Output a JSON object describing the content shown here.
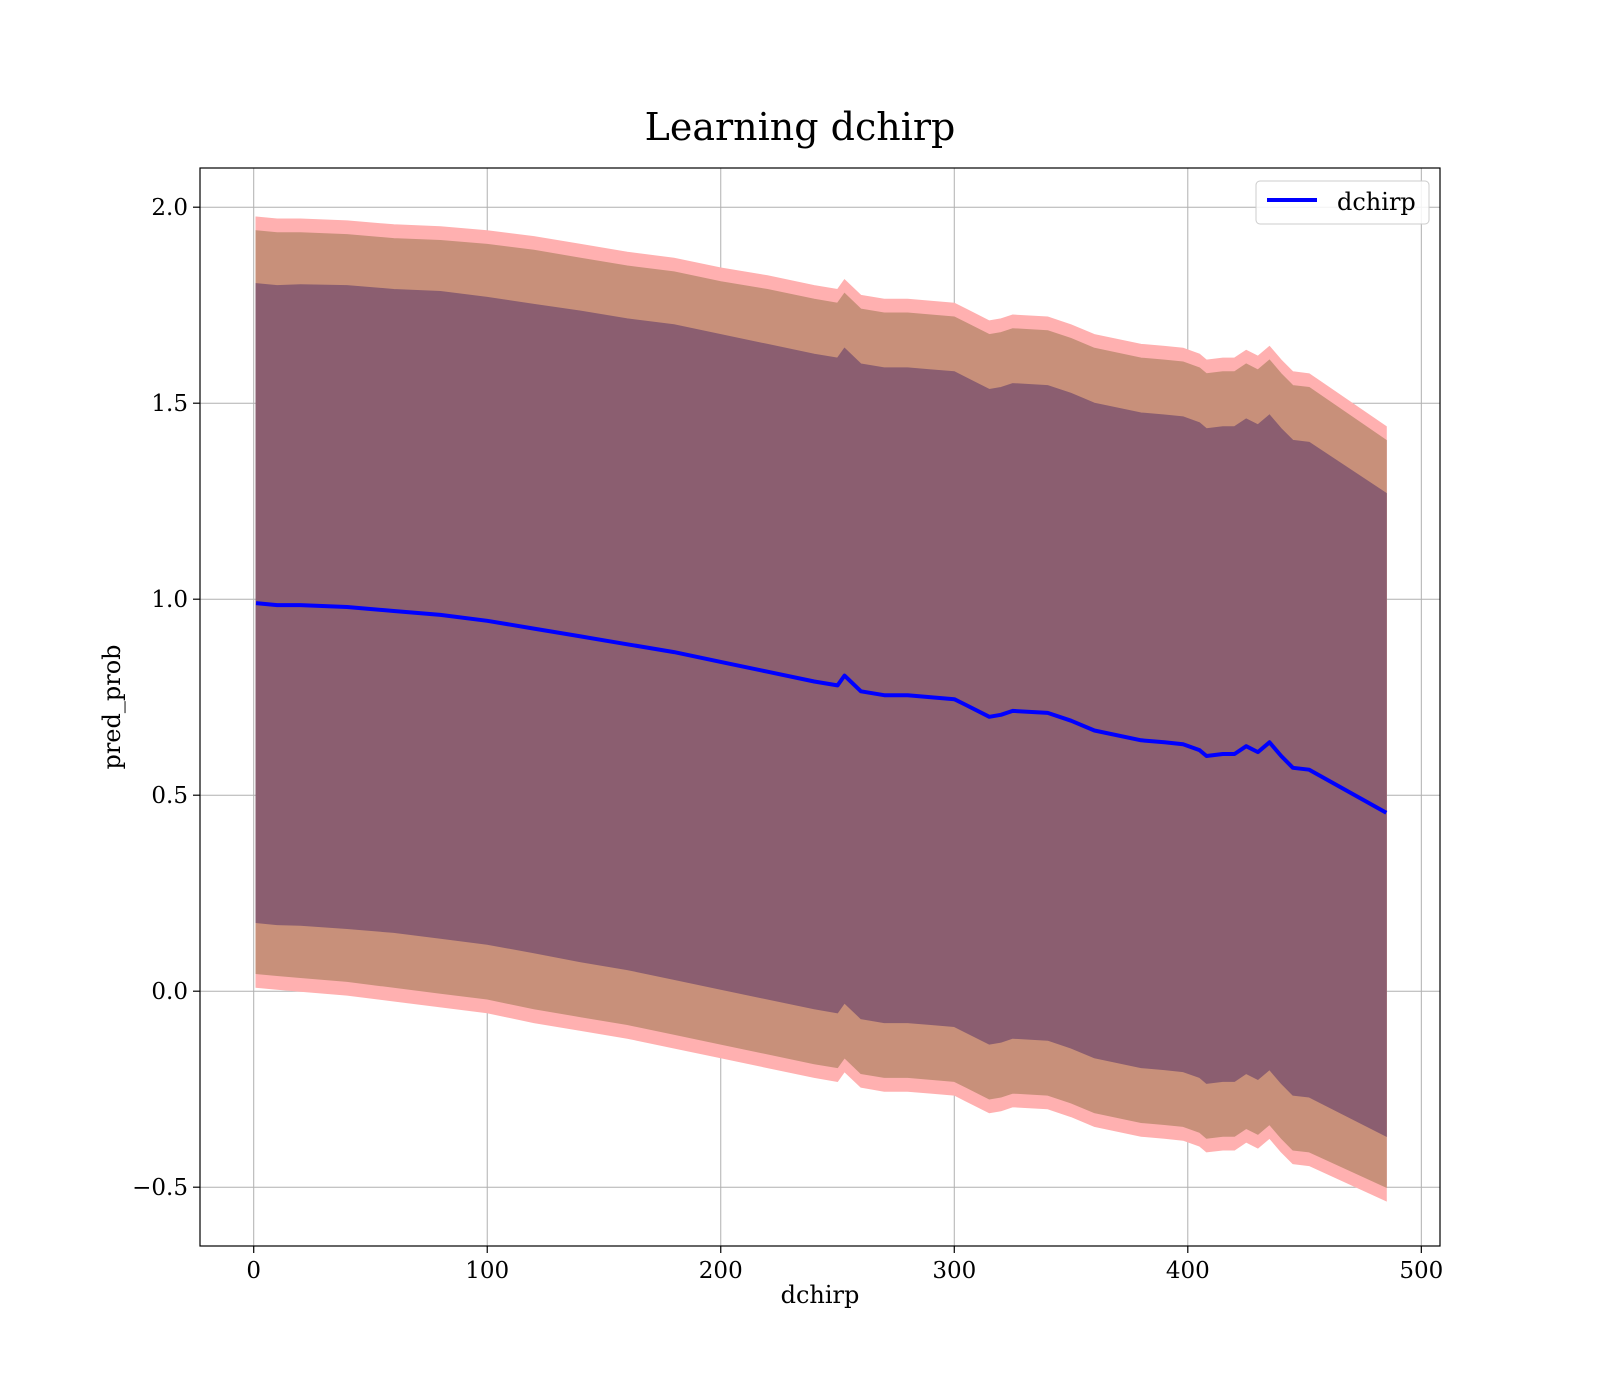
{
  "chart_data": {
    "type": "area",
    "title": "Learning dchirp",
    "xlabel": "dchirp",
    "ylabel": "pred_prob",
    "xlim": [
      -23,
      508
    ],
    "ylim": [
      -0.65,
      2.1
    ],
    "xticks": [
      0,
      100,
      200,
      300,
      400,
      500
    ],
    "yticks": [
      -0.5,
      0.0,
      0.5,
      1.0,
      1.5,
      2.0
    ],
    "xtick_labels": [
      "0",
      "100",
      "200",
      "300",
      "400",
      "500"
    ],
    "ytick_labels": [
      "−0.5",
      "0.0",
      "0.5",
      "1.0",
      "1.5",
      "2.0"
    ],
    "grid": true,
    "legend_position": "top-right",
    "x": [
      1,
      10,
      20,
      40,
      60,
      80,
      100,
      120,
      140,
      160,
      180,
      200,
      220,
      240,
      250,
      253,
      260,
      270,
      280,
      290,
      300,
      305,
      315,
      320,
      325,
      340,
      350,
      360,
      380,
      390,
      398,
      405,
      408,
      415,
      420,
      425,
      430,
      435,
      440,
      445,
      452,
      485
    ],
    "series": [
      {
        "name": "dchirp",
        "color": "#0000ff",
        "values": [
          0.99,
          0.985,
          0.985,
          0.98,
          0.97,
          0.96,
          0.945,
          0.925,
          0.905,
          0.885,
          0.865,
          0.84,
          0.815,
          0.79,
          0.78,
          0.805,
          0.765,
          0.755,
          0.755,
          0.75,
          0.745,
          0.73,
          0.7,
          0.705,
          0.715,
          0.71,
          0.69,
          0.665,
          0.64,
          0.635,
          0.63,
          0.615,
          0.6,
          0.605,
          0.605,
          0.625,
          0.61,
          0.635,
          0.6,
          0.57,
          0.565,
          0.455
        ]
      }
    ],
    "bands": [
      {
        "sigma": 1,
        "color": "#8b5e70",
        "lower": [
          0.175,
          0.17,
          0.168,
          0.16,
          0.15,
          0.135,
          0.12,
          0.098,
          0.075,
          0.055,
          0.03,
          0.005,
          -0.02,
          -0.045,
          -0.055,
          -0.03,
          -0.07,
          -0.08,
          -0.08,
          -0.085,
          -0.09,
          -0.105,
          -0.135,
          -0.13,
          -0.12,
          -0.125,
          -0.145,
          -0.17,
          -0.195,
          -0.2,
          -0.205,
          -0.22,
          -0.235,
          -0.23,
          -0.23,
          -0.21,
          -0.225,
          -0.2,
          -0.235,
          -0.265,
          -0.27,
          -0.37
        ],
        "upper": [
          1.805,
          1.8,
          1.802,
          1.8,
          1.79,
          1.785,
          1.77,
          1.752,
          1.735,
          1.715,
          1.7,
          1.675,
          1.65,
          1.625,
          1.615,
          1.64,
          1.6,
          1.59,
          1.59,
          1.585,
          1.58,
          1.565,
          1.535,
          1.54,
          1.55,
          1.545,
          1.525,
          1.5,
          1.475,
          1.47,
          1.465,
          1.45,
          1.435,
          1.44,
          1.44,
          1.46,
          1.445,
          1.47,
          1.435,
          1.405,
          1.4,
          1.27
        ]
      },
      {
        "sigma": 2,
        "color": "#c8907a",
        "lower": [
          0.045,
          0.04,
          0.035,
          0.025,
          0.01,
          -0.005,
          -0.02,
          -0.045,
          -0.065,
          -0.085,
          -0.11,
          -0.135,
          -0.16,
          -0.185,
          -0.195,
          -0.17,
          -0.21,
          -0.22,
          -0.22,
          -0.225,
          -0.23,
          -0.245,
          -0.275,
          -0.27,
          -0.26,
          -0.265,
          -0.285,
          -0.31,
          -0.335,
          -0.34,
          -0.345,
          -0.36,
          -0.375,
          -0.37,
          -0.37,
          -0.35,
          -0.365,
          -0.34,
          -0.375,
          -0.405,
          -0.41,
          -0.5
        ],
        "upper": [
          1.94,
          1.935,
          1.935,
          1.93,
          1.92,
          1.915,
          1.905,
          1.89,
          1.87,
          1.85,
          1.835,
          1.81,
          1.79,
          1.765,
          1.755,
          1.78,
          1.74,
          1.73,
          1.73,
          1.725,
          1.72,
          1.705,
          1.675,
          1.68,
          1.69,
          1.685,
          1.665,
          1.64,
          1.615,
          1.61,
          1.605,
          1.59,
          1.575,
          1.58,
          1.58,
          1.6,
          1.585,
          1.61,
          1.575,
          1.545,
          1.54,
          1.405
        ]
      },
      {
        "sigma": 3,
        "color": "#ffb0b0",
        "lower": [
          0.01,
          0.005,
          0.0,
          -0.01,
          -0.025,
          -0.04,
          -0.055,
          -0.08,
          -0.1,
          -0.12,
          -0.145,
          -0.17,
          -0.195,
          -0.22,
          -0.23,
          -0.205,
          -0.245,
          -0.255,
          -0.255,
          -0.26,
          -0.265,
          -0.28,
          -0.31,
          -0.305,
          -0.295,
          -0.3,
          -0.32,
          -0.345,
          -0.37,
          -0.375,
          -0.38,
          -0.395,
          -0.41,
          -0.405,
          -0.405,
          -0.385,
          -0.4,
          -0.375,
          -0.41,
          -0.44,
          -0.445,
          -0.535
        ],
        "upper": [
          1.975,
          1.97,
          1.97,
          1.965,
          1.955,
          1.95,
          1.94,
          1.925,
          1.905,
          1.885,
          1.87,
          1.845,
          1.825,
          1.8,
          1.79,
          1.815,
          1.775,
          1.765,
          1.765,
          1.76,
          1.755,
          1.74,
          1.71,
          1.715,
          1.725,
          1.72,
          1.7,
          1.675,
          1.65,
          1.645,
          1.64,
          1.625,
          1.61,
          1.615,
          1.615,
          1.635,
          1.62,
          1.645,
          1.61,
          1.58,
          1.575,
          1.44
        ]
      }
    ]
  }
}
